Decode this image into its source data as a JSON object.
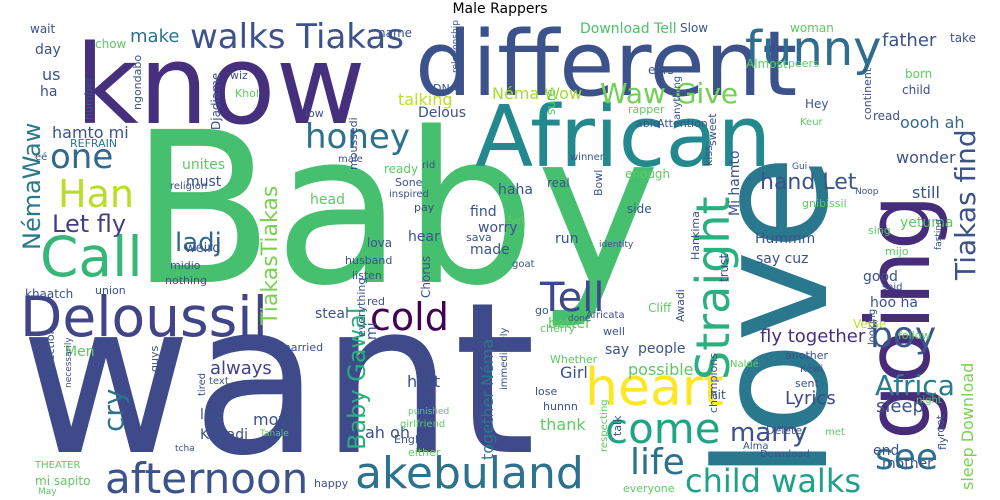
{
  "title": "Male Rappers",
  "words": [
    {
      "text": "Baby",
      "color": "#46c06f"
    },
    {
      "text": "want",
      "color": "#3e4a89"
    },
    {
      "text": "love",
      "color": "#2a788e"
    },
    {
      "text": "know",
      "color": "#46307e"
    },
    {
      "text": "different",
      "color": "#3b528b"
    },
    {
      "text": "African",
      "color": "#23898e"
    },
    {
      "text": "going",
      "color": "#472c7a"
    },
    {
      "text": "Deloussil",
      "color": "#414487"
    },
    {
      "text": "akebuland",
      "color": "#2c728e"
    },
    {
      "text": "heart",
      "color": "#fde725"
    },
    {
      "text": "afternoon",
      "color": "#3b528b"
    },
    {
      "text": "funny",
      "color": "#2f6c8e"
    },
    {
      "text": "Call",
      "color": "#35b779"
    },
    {
      "text": "Han",
      "color": "#b8de29"
    },
    {
      "text": "Straight",
      "color": "#2ab07f"
    },
    {
      "text": "Tell",
      "color": "#3e4989"
    },
    {
      "text": "one",
      "color": "#31688e"
    },
    {
      "text": "honey",
      "color": "#2c728e"
    },
    {
      "text": "come",
      "color": "#20a486"
    },
    {
      "text": "boy",
      "color": "#39568c"
    },
    {
      "text": "cold",
      "color": "#440154"
    },
    {
      "text": "walks Tiakas",
      "color": "#3b528b"
    },
    {
      "text": "Tiakas find",
      "color": "#3b528b"
    },
    {
      "text": "child walks",
      "color": "#1fa088"
    },
    {
      "text": "Waw Give",
      "color": "#73d056"
    },
    {
      "text": "life",
      "color": "#2c728e"
    },
    {
      "text": "see",
      "color": "#2c728e"
    },
    {
      "text": "Africa",
      "color": "#287d8e"
    },
    {
      "text": "Let fly",
      "color": "#433e85"
    },
    {
      "text": "Baby Gawal",
      "color": "#2ab07f"
    },
    {
      "text": "TiakasTiakas",
      "color": "#7ad151"
    },
    {
      "text": "NémaWaw",
      "color": "#2a788e"
    },
    {
      "text": "cry",
      "color": "#2c728e"
    },
    {
      "text": "marry",
      "color": "#3b528b"
    },
    {
      "text": "ladj",
      "color": "#31688e"
    },
    {
      "text": "hand Let",
      "color": "#3b528b"
    },
    {
      "text": "make",
      "color": "#2c728e"
    },
    {
      "text": "father",
      "color": "#3b528b"
    },
    {
      "text": "hamto mi",
      "color": "#3b528b"
    },
    {
      "text": "Néma Wow",
      "color": "#a5db36"
    },
    {
      "text": "always",
      "color": "#414487"
    },
    {
      "text": "Download Tell",
      "color": "#4ac16d"
    },
    {
      "text": "fly together",
      "color": "#46307e"
    },
    {
      "text": "sleep Download",
      "color": "#7ad151"
    },
    {
      "text": "together Néma",
      "color": "#2a788e"
    },
    {
      "text": "Mi hamto",
      "color": "#3b528b"
    },
    {
      "text": "still",
      "color": "#3b528b"
    },
    {
      "text": "wonder",
      "color": "#3b528b"
    },
    {
      "text": "oooh ah",
      "color": "#31688e"
    },
    {
      "text": "sleep",
      "color": "#3b528b"
    },
    {
      "text": "Lyrics",
      "color": "#3e4989"
    },
    {
      "text": "ah oh",
      "color": "#3b528b"
    },
    {
      "text": "movie",
      "color": "#3b528b"
    },
    {
      "text": "thank",
      "color": "#5ec962"
    },
    {
      "text": "hurt",
      "color": "#3b528b"
    },
    {
      "text": "Khaadj",
      "color": "#3b528b"
    },
    {
      "text": "talking",
      "color": "#bddf26"
    },
    {
      "text": "unites",
      "color": "#5ec962"
    },
    {
      "text": "must",
      "color": "#3b528b"
    },
    {
      "text": "head",
      "color": "#5ec962"
    },
    {
      "text": "find",
      "color": "#3b528b"
    },
    {
      "text": "made",
      "color": "#3b528b"
    },
    {
      "text": "hear",
      "color": "#3b528b"
    },
    {
      "text": "Hummm",
      "color": "#3b528b"
    },
    {
      "text": "say cuz",
      "color": "#3b528b"
    },
    {
      "text": "good",
      "color": "#3b528b"
    },
    {
      "text": "hoo ha",
      "color": "#3b528b"
    },
    {
      "text": "Girl",
      "color": "#3b528b"
    },
    {
      "text": "say",
      "color": "#3b528b"
    },
    {
      "text": "people",
      "color": "#3b528b"
    },
    {
      "text": "possible",
      "color": "#5ec962"
    },
    {
      "text": "better",
      "color": "#5ec962"
    },
    {
      "text": "steal",
      "color": "#3b528b"
    },
    {
      "text": "mother",
      "color": "#3b528b"
    },
    {
      "text": "end",
      "color": "#3b528b"
    },
    {
      "text": "leg",
      "color": "#3b528b"
    },
    {
      "text": "Men",
      "color": "#5ec962"
    },
    {
      "text": "us",
      "color": "#3b528b"
    },
    {
      "text": "ha",
      "color": "#3b528b"
    },
    {
      "text": "day",
      "color": "#3b528b"
    },
    {
      "text": "wait",
      "color": "#3b528b"
    },
    {
      "text": "chow",
      "color": "#5ec962"
    },
    {
      "text": "name",
      "color": "#3b528b"
    },
    {
      "text": "sure",
      "color": "#5ec962"
    },
    {
      "text": "Slow",
      "color": "#3b528b"
    },
    {
      "text": "woman",
      "color": "#5ec962"
    },
    {
      "text": "take",
      "color": "#3b528b"
    },
    {
      "text": "born",
      "color": "#5ec962"
    },
    {
      "text": "child",
      "color": "#3b528b"
    },
    {
      "text": "read",
      "color": "#3b528b"
    },
    {
      "text": "Hey",
      "color": "#3b528b"
    },
    {
      "text": "Keur",
      "color": "#5ec962"
    },
    {
      "text": "continent",
      "color": "#3b528b"
    },
    {
      "text": "Almost",
      "color": "#5ec962"
    },
    {
      "text": "peers",
      "color": "#5ec962"
    },
    {
      "text": "ears",
      "color": "#3b528b"
    },
    {
      "text": "rapper",
      "color": "#5ec962"
    },
    {
      "text": "able",
      "color": "#3b528b"
    },
    {
      "text": "Attention",
      "color": "#3b528b"
    },
    {
      "text": "DNA",
      "color": "#3b528b"
    },
    {
      "text": "Delous",
      "color": "#3b528b"
    },
    {
      "text": "wiz",
      "color": "#3b528b"
    },
    {
      "text": "Khol",
      "color": "#5ec962"
    },
    {
      "text": "low",
      "color": "#3b528b"
    },
    {
      "text": "REFRAIN",
      "color": "#2a788e"
    },
    {
      "text": "ngondabo",
      "color": "#3b528b"
    },
    {
      "text": "number",
      "color": "#3b528b"
    },
    {
      "text": "Djadiame",
      "color": "#3b528b"
    },
    {
      "text": "relationship",
      "color": "#3b528b"
    },
    {
      "text": "ready",
      "color": "#5ec962"
    },
    {
      "text": "male",
      "color": "#3b528b"
    },
    {
      "text": "moussedi",
      "color": "#3b528b"
    },
    {
      "text": "religion",
      "color": "#3b528b"
    },
    {
      "text": "Sone",
      "color": "#3b528b"
    },
    {
      "text": "inspired",
      "color": "#3b528b"
    },
    {
      "text": "pay",
      "color": "#3b528b"
    },
    {
      "text": "enough",
      "color": "#5ec962"
    },
    {
      "text": "winner",
      "color": "#3b528b"
    },
    {
      "text": "kiss",
      "color": "#3b528b"
    },
    {
      "text": "sweet",
      "color": "#3b528b"
    },
    {
      "text": "haha",
      "color": "#3b528b"
    },
    {
      "text": "real",
      "color": "#3b528b"
    },
    {
      "text": "Bowl",
      "color": "#3b528b"
    },
    {
      "text": "Set",
      "color": "#5ec962"
    },
    {
      "text": "worry",
      "color": "#3b528b"
    },
    {
      "text": "sava",
      "color": "#3b528b"
    },
    {
      "text": "run",
      "color": "#3b528b"
    },
    {
      "text": "identity",
      "color": "#3b528b"
    },
    {
      "text": "goat",
      "color": "#3b528b"
    },
    {
      "text": "side",
      "color": "#3b528b"
    },
    {
      "text": "Hankima",
      "color": "#3b528b"
    },
    {
      "text": "trust",
      "color": "#3b528b"
    },
    {
      "text": "gnibissil",
      "color": "#5ec962"
    },
    {
      "text": "yetuma",
      "color": "#5ec962"
    },
    {
      "text": "sing",
      "color": "#5ec962"
    },
    {
      "text": "mijo",
      "color": "#5ec962"
    },
    {
      "text": "said",
      "color": "#3b528b"
    },
    {
      "text": "Noop",
      "color": "#3b528b"
    },
    {
      "text": "Gui",
      "color": "#3b528b"
    },
    {
      "text": "fasting",
      "color": "#3b528b"
    },
    {
      "text": "weird",
      "color": "#3b528b"
    },
    {
      "text": "midio",
      "color": "#3b528b"
    },
    {
      "text": "nothing",
      "color": "#3b528b"
    },
    {
      "text": "husband",
      "color": "#3b528b"
    },
    {
      "text": "listen",
      "color": "#3b528b"
    },
    {
      "text": "lova",
      "color": "#3b528b"
    },
    {
      "text": "khaatch",
      "color": "#3b528b"
    },
    {
      "text": "union",
      "color": "#3b528b"
    },
    {
      "text": "red",
      "color": "#3b528b"
    },
    {
      "text": "married",
      "color": "#3b528b"
    },
    {
      "text": "everything",
      "color": "#3b528b"
    },
    {
      "text": "mi",
      "color": "#3b528b"
    },
    {
      "text": "Chorus",
      "color": "#3b528b"
    },
    {
      "text": "go",
      "color": "#3b528b"
    },
    {
      "text": "cherry",
      "color": "#5ec962"
    },
    {
      "text": "done",
      "color": "#3b528b"
    },
    {
      "text": "Africata",
      "color": "#3b528b"
    },
    {
      "text": "well",
      "color": "#3b528b"
    },
    {
      "text": "Cliff",
      "color": "#5ec962"
    },
    {
      "text": "Awadi",
      "color": "#3b528b"
    },
    {
      "text": "Verse",
      "color": "#b8de29"
    },
    {
      "text": "follow",
      "color": "#5ec962"
    },
    {
      "text": "looking",
      "color": "#3b528b"
    },
    {
      "text": "champions",
      "color": "#3b528b"
    },
    {
      "text": "another",
      "color": "#3b528b"
    },
    {
      "text": "sent",
      "color": "#3b528b"
    },
    {
      "text": "Kéwi",
      "color": "#3b528b"
    },
    {
      "text": "night",
      "color": "#5ec962"
    },
    {
      "text": "Whether",
      "color": "#5ec962"
    },
    {
      "text": "hit",
      "color": "#3b528b"
    },
    {
      "text": "lose",
      "color": "#3b528b"
    },
    {
      "text": "hunnn",
      "color": "#3b528b"
    },
    {
      "text": "talk",
      "color": "#3b528b"
    },
    {
      "text": "Naldé",
      "color": "#5ec962"
    },
    {
      "text": "root",
      "color": "#3b528b"
    },
    {
      "text": "fly",
      "color": "#3b528b"
    },
    {
      "text": "met",
      "color": "#5ec962"
    },
    {
      "text": "Delete",
      "color": "#3b528b"
    },
    {
      "text": "Alma",
      "color": "#3b528b"
    },
    {
      "text": "everyone",
      "color": "#5ec962"
    },
    {
      "text": "respecting",
      "color": "#5ec962"
    },
    {
      "text": "immediately",
      "color": "#3b528b"
    },
    {
      "text": "English",
      "color": "#3b528b"
    },
    {
      "text": "either",
      "color": "#5ec962"
    },
    {
      "text": "punished",
      "color": "#5ec962"
    },
    {
      "text": "girlfriend",
      "color": "#5ec962"
    },
    {
      "text": "text",
      "color": "#3b528b"
    },
    {
      "text": "tired",
      "color": "#3b528b"
    },
    {
      "text": "Tanale",
      "color": "#5ec962"
    },
    {
      "text": "tcha",
      "color": "#3b528b"
    },
    {
      "text": "happy",
      "color": "#3b528b"
    },
    {
      "text": "mi sapito",
      "color": "#5ec962"
    },
    {
      "text": "THEATER",
      "color": "#5ec962"
    },
    {
      "text": "May",
      "color": "#5ec962"
    },
    {
      "text": "connection",
      "color": "#3b528b"
    },
    {
      "text": "necessarily",
      "color": "#3b528b"
    },
    {
      "text": "guys",
      "color": "#3b528b"
    },
    {
      "text": "éé",
      "color": "#3b528b"
    },
    {
      "text": "rid",
      "color": "#3b528b"
    },
    {
      "text": "anything",
      "color": "#3b528b"
    },
    {
      "text": "Download",
      "color": "#3b528b"
    }
  ]
}
